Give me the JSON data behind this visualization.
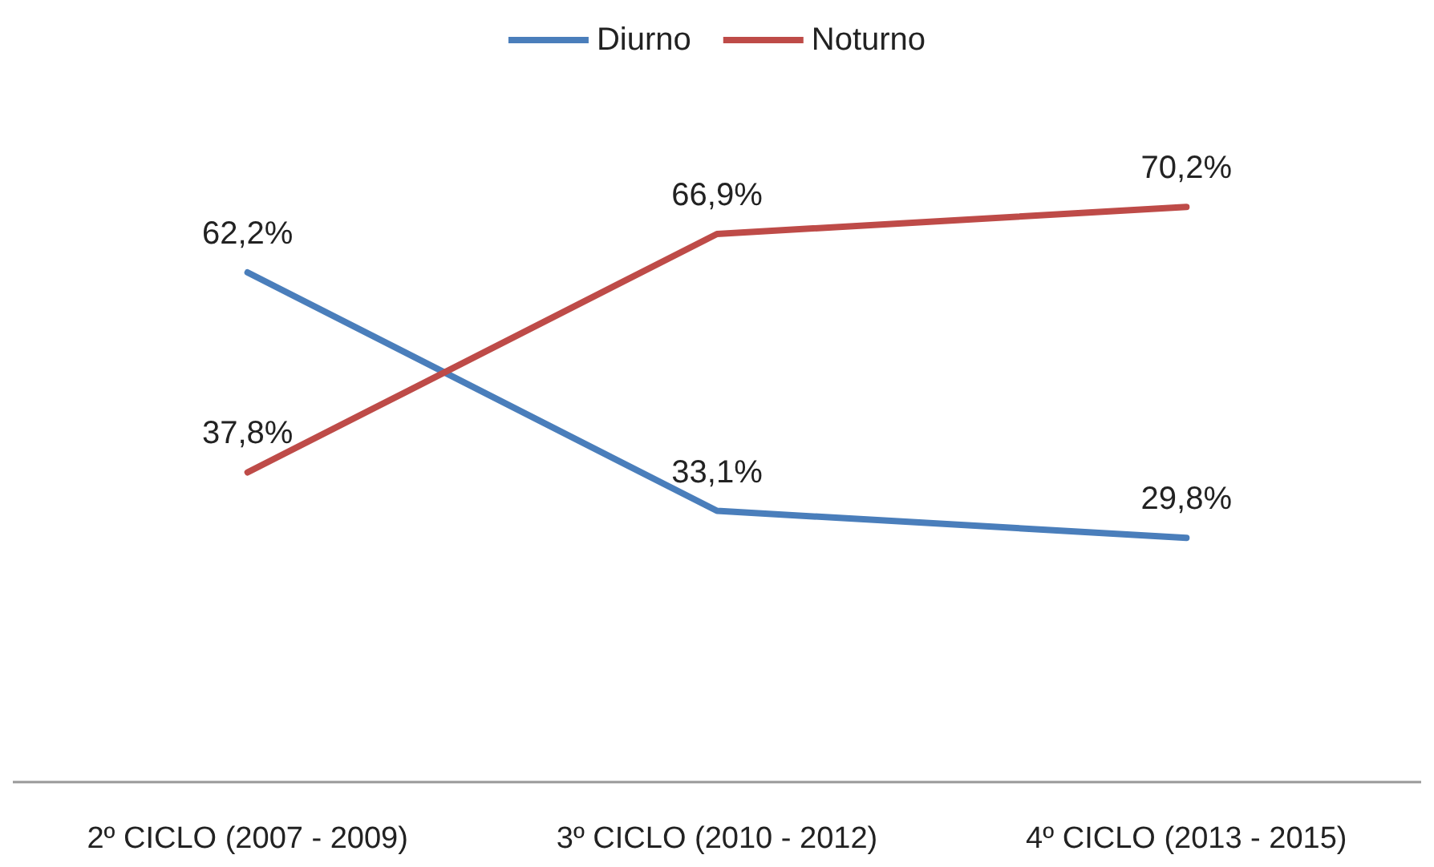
{
  "chart_data": {
    "type": "line",
    "categories": [
      "2º CICLO (2007 - 2009)",
      "3º CICLO (2010 - 2012)",
      "4º CICLO (2013 - 2015)"
    ],
    "series": [
      {
        "name": "Diurno",
        "color": "#4a7ebb",
        "values": [
          62.2,
          33.1,
          29.8
        ],
        "value_labels": [
          "62,2%",
          "33,1%",
          "29,8%"
        ]
      },
      {
        "name": "Noturno",
        "color": "#be4b48",
        "values": [
          37.8,
          66.9,
          70.2
        ],
        "value_labels": [
          "37,8%",
          "66,9%",
          "70,2%"
        ]
      }
    ],
    "tick_labels": "x",
    "grid": false,
    "legend": "top",
    "marker": "none",
    "line_style": "solid"
  }
}
